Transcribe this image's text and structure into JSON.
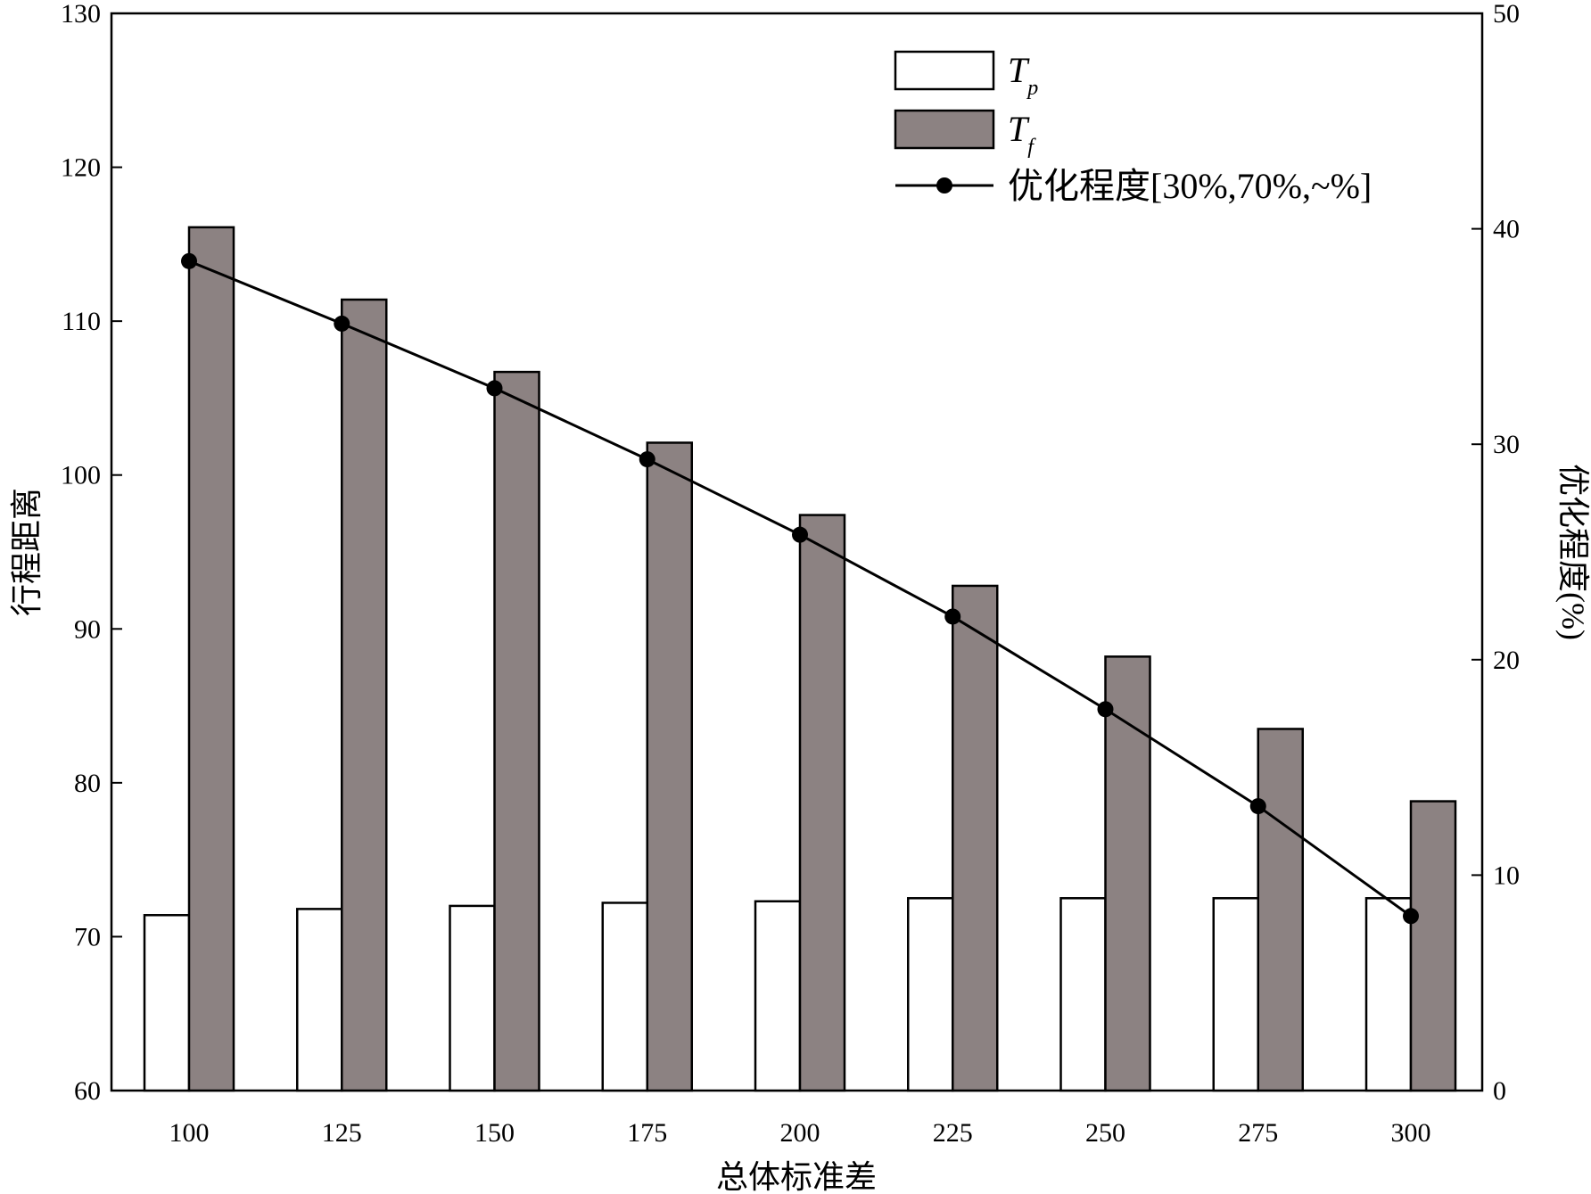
{
  "chart_data": {
    "type": "bar",
    "categories": [
      "100",
      "125",
      "150",
      "175",
      "200",
      "225",
      "250",
      "275",
      "300"
    ],
    "xlabel": "总体标准差",
    "ylabel": "行程距离",
    "y2label": "优化程度(%)",
    "ylim": [
      60,
      130
    ],
    "y2lim": [
      0,
      50
    ],
    "yticks": [
      60,
      70,
      80,
      90,
      100,
      110,
      120,
      130
    ],
    "y2ticks": [
      0,
      10,
      20,
      30,
      40,
      50
    ],
    "legend_position": "top-right",
    "grid": false,
    "series": [
      {
        "legend_base": "T",
        "legend_sub": "p",
        "kind": "bar",
        "axis": "left",
        "color": "#ffffff",
        "values": [
          71.4,
          71.8,
          72.0,
          72.2,
          72.3,
          72.5,
          72.5,
          72.5,
          72.5
        ]
      },
      {
        "legend_base": "T",
        "legend_sub": "f",
        "kind": "bar",
        "axis": "left",
        "color": "#8c8282",
        "values": [
          116.1,
          111.4,
          106.7,
          102.1,
          97.4,
          92.8,
          88.2,
          83.5,
          78.8
        ]
      },
      {
        "name": "优化程度[30%,70%,~%]",
        "kind": "line",
        "axis": "right",
        "color": "#000000",
        "values": [
          38.5,
          35.6,
          32.6,
          29.3,
          25.8,
          22.0,
          17.7,
          13.2,
          8.1
        ]
      }
    ]
  }
}
